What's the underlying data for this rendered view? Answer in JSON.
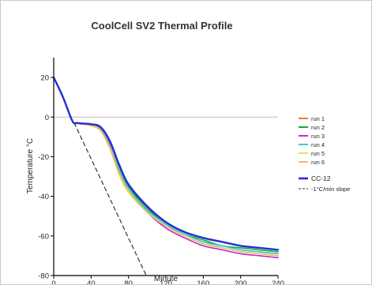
{
  "chart_data": {
    "type": "line",
    "title": "CoolCell SV2 Thermal Profile",
    "xlabel": "Minute",
    "ylabel": "Temperature °C",
    "xlim": [
      0,
      240
    ],
    "ylim": [
      -80,
      30
    ],
    "xticks": [
      0,
      40,
      80,
      120,
      160,
      200,
      240
    ],
    "yticks": [
      -80,
      -60,
      -40,
      -20,
      0,
      20
    ],
    "grid": false,
    "legend_position": "right",
    "reference_line": {
      "y": 0,
      "color": "#bbbbbb"
    },
    "series": [
      {
        "name": "run 1",
        "color": "#f07a2a",
        "style": "solid",
        "x": [
          0,
          10,
          20,
          25,
          30,
          40,
          50,
          60,
          70,
          80,
          100,
          120,
          140,
          160,
          180,
          200,
          220,
          240
        ],
        "y": [
          20,
          10,
          -2,
          -3,
          -3.5,
          -4,
          -6,
          -14,
          -27,
          -36,
          -47,
          -54,
          -59,
          -63,
          -65,
          -67,
          -68,
          -69
        ]
      },
      {
        "name": "run 2",
        "color": "#21a33a",
        "style": "solid",
        "x": [
          0,
          10,
          20,
          25,
          30,
          40,
          50,
          60,
          70,
          80,
          100,
          120,
          140,
          160,
          180,
          200,
          220,
          240
        ],
        "y": [
          20,
          10,
          -2,
          -3,
          -3.2,
          -3.5,
          -5,
          -12,
          -25,
          -35,
          -46,
          -54,
          -59,
          -62,
          -65,
          -66,
          -67,
          -68
        ]
      },
      {
        "name": "run 3",
        "color": "#bb2fbf",
        "style": "solid",
        "x": [
          0,
          10,
          20,
          25,
          30,
          40,
          50,
          60,
          70,
          80,
          100,
          120,
          140,
          160,
          180,
          200,
          220,
          240
        ],
        "y": [
          20,
          10,
          -2,
          -3,
          -3.5,
          -4,
          -6,
          -14,
          -28,
          -37,
          -48,
          -56,
          -61,
          -65,
          -67,
          -69,
          -70,
          -71
        ]
      },
      {
        "name": "run 4",
        "color": "#33d0c0",
        "style": "solid",
        "x": [
          0,
          10,
          20,
          25,
          30,
          40,
          50,
          60,
          70,
          80,
          100,
          120,
          140,
          160,
          180,
          200,
          220,
          240
        ],
        "y": [
          20,
          10,
          -2,
          -3,
          -3.3,
          -3.8,
          -5.5,
          -13,
          -26,
          -36,
          -47,
          -54,
          -59,
          -63,
          -65,
          -67,
          -68,
          -69
        ]
      },
      {
        "name": "run 5",
        "color": "#e8e24a",
        "style": "solid",
        "x": [
          0,
          10,
          20,
          25,
          30,
          40,
          50,
          60,
          70,
          80,
          100,
          120,
          140,
          160,
          180,
          200,
          220,
          240
        ],
        "y": [
          20,
          10,
          -2,
          -3,
          -3.6,
          -4.5,
          -7,
          -16,
          -29,
          -38,
          -48,
          -55,
          -60,
          -64,
          -66,
          -68,
          -69,
          -70
        ]
      },
      {
        "name": "run 6",
        "color": "#f2b27c",
        "style": "solid",
        "x": [
          0,
          10,
          20,
          25,
          30,
          40,
          50,
          60,
          70,
          80,
          100,
          120,
          140,
          160,
          180,
          200,
          220,
          240
        ],
        "y": [
          20,
          10,
          -2,
          -3,
          -3.5,
          -4.2,
          -6.5,
          -15,
          -28,
          -37,
          -48,
          -55,
          -60,
          -64,
          -66,
          -68,
          -69,
          -70
        ]
      },
      {
        "name": "CC-12",
        "color": "#1f2fd6",
        "style": "solid",
        "bold": true,
        "x": [
          0,
          10,
          20,
          25,
          30,
          40,
          50,
          60,
          70,
          80,
          100,
          120,
          140,
          160,
          180,
          200,
          220,
          240
        ],
        "y": [
          20,
          10,
          -2,
          -3,
          -3.2,
          -3.6,
          -5,
          -12,
          -24,
          -34,
          -45,
          -53,
          -58,
          -61,
          -63,
          -65,
          -66,
          -67
        ]
      },
      {
        "name": "-1°C/min slope",
        "color": "#333333",
        "style": "dashed",
        "x": [
          22,
          102
        ],
        "y": [
          -3,
          -83
        ]
      }
    ]
  }
}
